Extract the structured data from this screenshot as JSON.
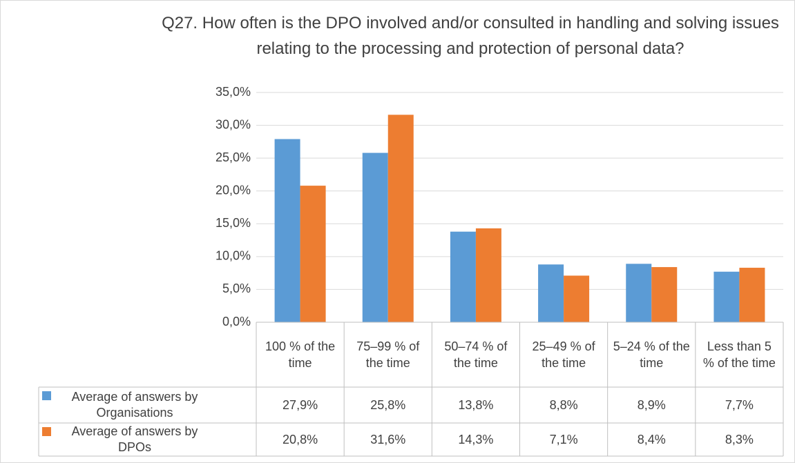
{
  "chart_data": {
    "type": "bar",
    "title": "Q27. How often is the DPO involved and/or consulted in handling and solving issues relating to the processing and protection of personal data?",
    "categories": [
      "100 % of the time",
      "75–99 % of the time",
      "50–74 % of the time",
      "25–49 % of the time",
      "5–24 % of the time",
      "Less than 5 % of the time"
    ],
    "series": [
      {
        "name": "Average of answers by Organisations",
        "color": "#5b9bd5",
        "values": [
          27.9,
          25.8,
          13.8,
          8.8,
          8.9,
          7.7
        ],
        "value_labels": [
          "27,9%",
          "25,8%",
          "13,8%",
          "8,8%",
          "8,9%",
          "7,7%"
        ]
      },
      {
        "name": "Average of answers by DPOs",
        "color": "#ed7d31",
        "values": [
          20.8,
          31.6,
          14.3,
          7.1,
          8.4,
          8.3
        ],
        "value_labels": [
          "20,8%",
          "31,6%",
          "14,3%",
          "7,1%",
          "8,4%",
          "8,3%"
        ]
      }
    ],
    "ylim": [
      0,
      35
    ],
    "yticks": [
      {
        "value": 0,
        "label": "0,0%"
      },
      {
        "value": 5,
        "label": "5,0%"
      },
      {
        "value": 10,
        "label": "10,0%"
      },
      {
        "value": 15,
        "label": "15,0%"
      },
      {
        "value": 20,
        "label": "20,0%"
      },
      {
        "value": 25,
        "label": "25,0%"
      },
      {
        "value": 30,
        "label": "30,0%"
      },
      {
        "value": 35,
        "label": "35,0%"
      }
    ],
    "grid": true
  }
}
